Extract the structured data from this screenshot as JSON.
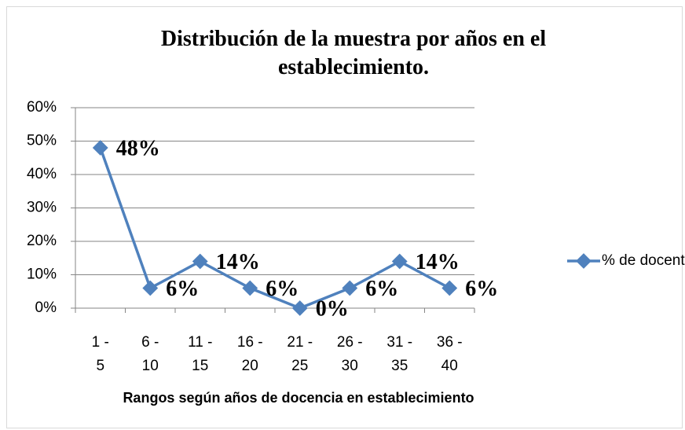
{
  "chart_data": {
    "type": "line",
    "title": "Distribución de la muestra por años en el establecimiento.",
    "x_label": "Rangos según años de docencia en establecimiento",
    "categories": [
      "1 - 5",
      "6 - 10",
      "11 - 15",
      "16 - 20",
      "21 - 25",
      "26 - 30",
      "31 - 35",
      "36 - 40"
    ],
    "series": [
      {
        "name": "% de docentes",
        "color": "#4f81bd",
        "values": [
          48,
          6,
          14,
          6,
          0,
          6,
          14,
          6
        ],
        "value_labels": [
          "48%",
          "6%",
          "14%",
          "6%",
          "0%",
          "6%",
          "14%",
          "6%"
        ]
      }
    ],
    "ylim": [
      0,
      60
    ],
    "yticks": [
      {
        "value": 0,
        "label": "0%"
      },
      {
        "value": 10,
        "label": "10%"
      },
      {
        "value": 20,
        "label": "20%"
      },
      {
        "value": 30,
        "label": "30%"
      },
      {
        "value": 40,
        "label": "40%"
      },
      {
        "value": 50,
        "label": "50%"
      },
      {
        "value": 60,
        "label": "60%"
      }
    ],
    "grid": true,
    "legend": "right"
  }
}
